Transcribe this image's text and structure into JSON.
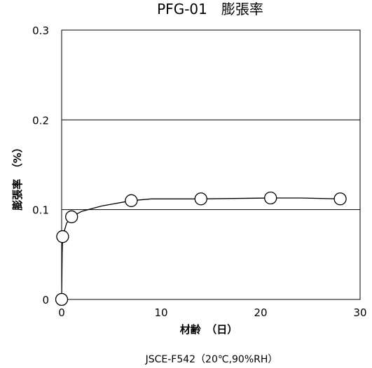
{
  "chart_data": {
    "type": "scatter",
    "title": "PFG-01　膨張率",
    "xlabel": "材齢　（日）",
    "ylabel": "膨張率　（%）",
    "note": "JSCE-F542（20℃,90%RH）",
    "xlim": [
      0,
      30
    ],
    "ylim": [
      0,
      0.3
    ],
    "xticks": [
      {
        "value": 0,
        "label": "0"
      },
      {
        "value": 10,
        "label": "10"
      },
      {
        "value": 20,
        "label": "20"
      },
      {
        "value": 30,
        "label": "30"
      }
    ],
    "yticks": [
      {
        "value": 0,
        "label": "0"
      },
      {
        "value": 0.1,
        "label": "0.1"
      },
      {
        "value": 0.2,
        "label": "0.2"
      },
      {
        "value": 0.3,
        "label": "0.3"
      }
    ],
    "gridlines_y": [
      0.1,
      0.2
    ],
    "points": [
      {
        "x": 0,
        "y": 0
      },
      {
        "x": 0.1,
        "y": 0.07
      },
      {
        "x": 1,
        "y": 0.092
      },
      {
        "x": 7,
        "y": 0.11
      },
      {
        "x": 14,
        "y": 0.112
      },
      {
        "x": 21,
        "y": 0.113
      },
      {
        "x": 28,
        "y": 0.112
      }
    ],
    "curve": [
      {
        "x": 0,
        "y": 0
      },
      {
        "x": 0.05,
        "y": 0.05
      },
      {
        "x": 0.1,
        "y": 0.07
      },
      {
        "x": 0.5,
        "y": 0.085
      },
      {
        "x": 1,
        "y": 0.092
      },
      {
        "x": 2,
        "y": 0.098
      },
      {
        "x": 4,
        "y": 0.104
      },
      {
        "x": 7,
        "y": 0.11
      },
      {
        "x": 9,
        "y": 0.112
      },
      {
        "x": 14,
        "y": 0.112
      },
      {
        "x": 21,
        "y": 0.113
      },
      {
        "x": 24,
        "y": 0.113
      },
      {
        "x": 28,
        "y": 0.112
      }
    ],
    "colors": {
      "line": "#000000",
      "marker_fill": "#ffffff",
      "background": "#ffffff"
    }
  }
}
